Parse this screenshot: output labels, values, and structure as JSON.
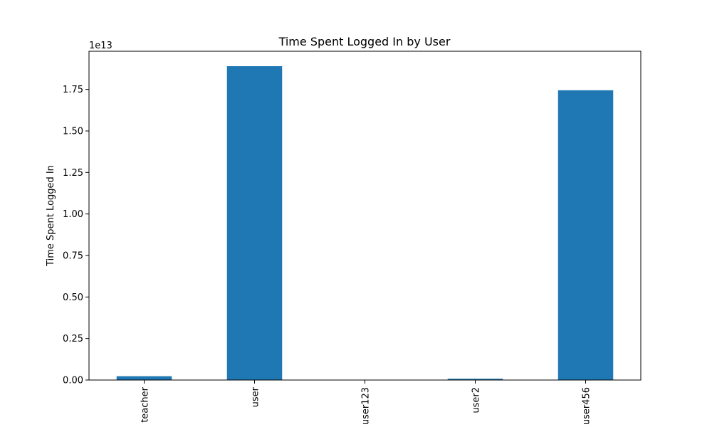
{
  "chart_data": {
    "type": "bar",
    "title": "Time Spent Logged In by User",
    "xlabel": "",
    "ylabel": "Time Spent Logged In",
    "offset_text": "1e13",
    "scale": 10000000000000,
    "categories": [
      "teacher",
      "user",
      "user123",
      "user2",
      "user456"
    ],
    "values": [
      230000000000,
      18900000000000,
      0,
      80000000000,
      17450000000000
    ],
    "ylim": [
      0,
      19800000000000
    ],
    "yticks": [
      0,
      2500000000000,
      5000000000000,
      7500000000000,
      10000000000000,
      12500000000000,
      15000000000000,
      17500000000000
    ],
    "ytick_labels": [
      "0.00",
      "0.25",
      "0.50",
      "0.75",
      "1.00",
      "1.25",
      "1.50",
      "1.75"
    ],
    "bar_color": "#1f77b4",
    "grid": false,
    "legend": "none"
  }
}
